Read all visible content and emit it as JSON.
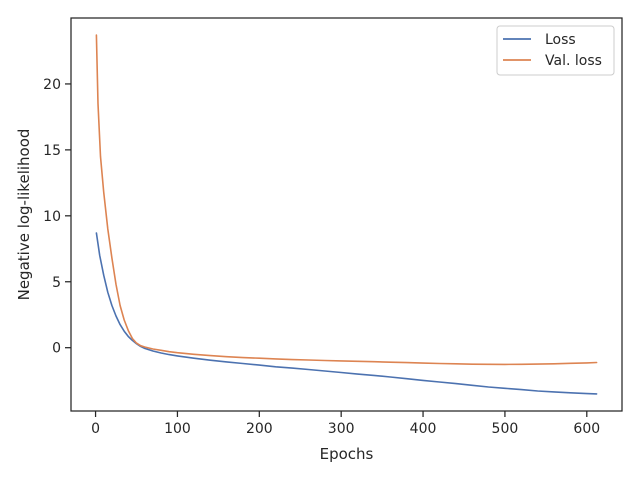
{
  "chart_data": {
    "type": "line",
    "title": "",
    "xlabel": "Epochs",
    "ylabel": "Negative log-likelihood",
    "xlim": [
      -30,
      643
    ],
    "ylim": [
      -4.8,
      25.0
    ],
    "xticks": [
      0,
      100,
      200,
      300,
      400,
      500,
      600
    ],
    "yticks": [
      0,
      5,
      10,
      15,
      20
    ],
    "grid": false,
    "legend_position": "top-right",
    "series": [
      {
        "name": "Loss",
        "color": "#4c72b0",
        "x": [
          1,
          5,
          10,
          15,
          20,
          25,
          30,
          35,
          40,
          45,
          50,
          55,
          60,
          70,
          80,
          90,
          100,
          120,
          140,
          160,
          180,
          200,
          220,
          240,
          260,
          280,
          300,
          320,
          340,
          360,
          380,
          400,
          420,
          440,
          460,
          480,
          500,
          520,
          540,
          560,
          580,
          600,
          612
        ],
        "y": [
          8.7,
          7.0,
          5.5,
          4.2,
          3.2,
          2.4,
          1.75,
          1.25,
          0.85,
          0.55,
          0.3,
          0.1,
          -0.05,
          -0.25,
          -0.4,
          -0.52,
          -0.62,
          -0.8,
          -0.95,
          -1.08,
          -1.2,
          -1.32,
          -1.45,
          -1.55,
          -1.65,
          -1.77,
          -1.88,
          -2.0,
          -2.1,
          -2.22,
          -2.35,
          -2.48,
          -2.6,
          -2.72,
          -2.85,
          -2.98,
          -3.08,
          -3.18,
          -3.28,
          -3.35,
          -3.42,
          -3.48,
          -3.5
        ]
      },
      {
        "name": "Val. loss",
        "color": "#dd8452",
        "x": [
          1,
          3,
          6,
          10,
          15,
          20,
          25,
          30,
          35,
          40,
          45,
          50,
          55,
          60,
          70,
          80,
          90,
          100,
          120,
          140,
          160,
          180,
          200,
          220,
          240,
          260,
          280,
          300,
          320,
          340,
          360,
          380,
          400,
          420,
          440,
          460,
          480,
          500,
          520,
          540,
          560,
          580,
          600,
          612
        ],
        "y": [
          23.7,
          18.5,
          14.5,
          11.8,
          9.0,
          6.8,
          4.8,
          3.2,
          2.1,
          1.3,
          0.7,
          0.35,
          0.15,
          0.05,
          -0.1,
          -0.2,
          -0.3,
          -0.38,
          -0.5,
          -0.6,
          -0.68,
          -0.75,
          -0.8,
          -0.85,
          -0.9,
          -0.93,
          -0.97,
          -1.0,
          -1.03,
          -1.06,
          -1.1,
          -1.13,
          -1.17,
          -1.2,
          -1.22,
          -1.25,
          -1.26,
          -1.27,
          -1.26,
          -1.24,
          -1.22,
          -1.18,
          -1.15,
          -1.12
        ]
      }
    ]
  }
}
